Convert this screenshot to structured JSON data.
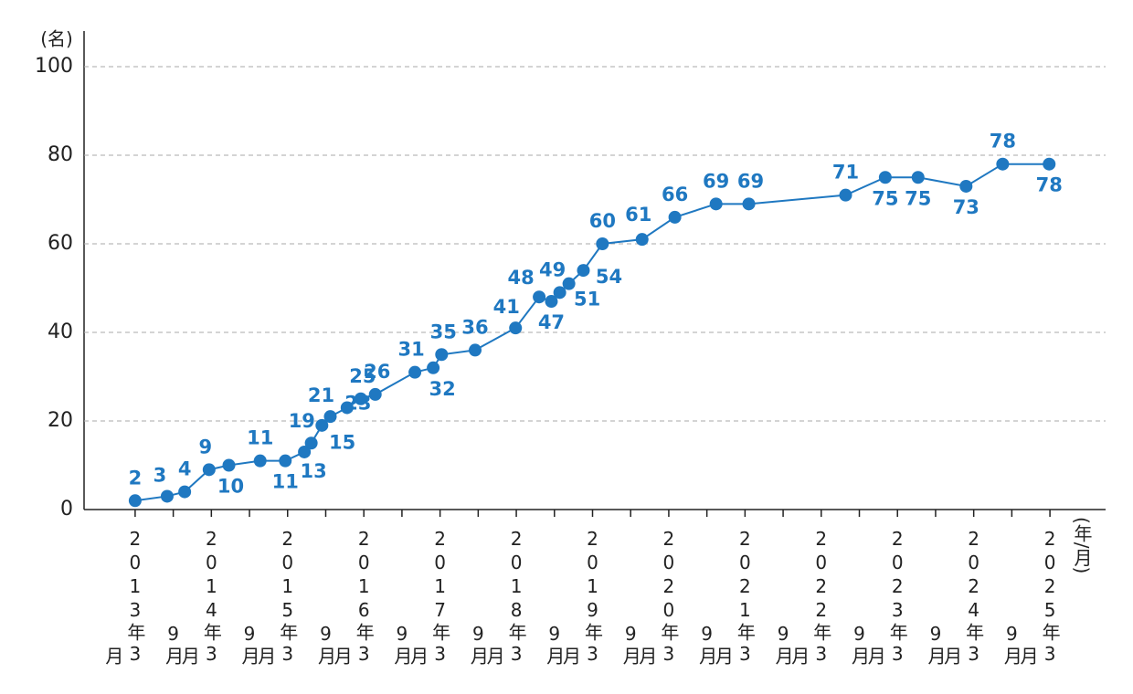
{
  "chart_data": {
    "type": "line",
    "y_unit": "(名)",
    "x_unit": "(年/月)",
    "color": "#1f78c1",
    "grid": true,
    "ylim": [
      0,
      100
    ],
    "yticks": [
      0,
      20,
      40,
      60,
      80,
      100
    ],
    "xlim": [
      2012.5,
      2025.9
    ],
    "xticks": [
      {
        "value": 2013.17,
        "label": "2013年3月"
      },
      {
        "value": 2013.67,
        "label": "9月"
      },
      {
        "value": 2014.17,
        "label": "2014年3月"
      },
      {
        "value": 2014.67,
        "label": "9月"
      },
      {
        "value": 2015.17,
        "label": "2015年3月"
      },
      {
        "value": 2015.67,
        "label": "9月"
      },
      {
        "value": 2016.17,
        "label": "2016年3月"
      },
      {
        "value": 2016.67,
        "label": "9月"
      },
      {
        "value": 2017.17,
        "label": "2017年3月"
      },
      {
        "value": 2017.67,
        "label": "9月"
      },
      {
        "value": 2018.17,
        "label": "2018年3月"
      },
      {
        "value": 2018.67,
        "label": "9月"
      },
      {
        "value": 2019.17,
        "label": "2019年3月"
      },
      {
        "value": 2019.67,
        "label": "9月"
      },
      {
        "value": 2020.17,
        "label": "2020年3月"
      },
      {
        "value": 2020.67,
        "label": "9月"
      },
      {
        "value": 2021.17,
        "label": "2021年3月"
      },
      {
        "value": 2021.67,
        "label": "9月"
      },
      {
        "value": 2022.17,
        "label": "2022年3月"
      },
      {
        "value": 2022.67,
        "label": "9月"
      },
      {
        "value": 2023.17,
        "label": "2023年3月"
      },
      {
        "value": 2023.67,
        "label": "9月"
      },
      {
        "value": 2024.17,
        "label": "2024年3月"
      },
      {
        "value": 2024.67,
        "label": "9月"
      },
      {
        "value": 2025.17,
        "label": "2025年3月"
      }
    ],
    "x": [
      2013.17,
      2013.59,
      2013.82,
      2014.14,
      2014.4,
      2014.81,
      2015.14,
      2015.39,
      2015.48,
      2015.62,
      2015.73,
      2015.95,
      2016.13,
      2016.32,
      2016.84,
      2017.08,
      2017.19,
      2017.63,
      2018.16,
      2018.47,
      2018.63,
      2018.74,
      2018.86,
      2019.05,
      2019.3,
      2019.82,
      2020.25,
      2020.79,
      2021.22,
      2022.49,
      2023.01,
      2023.44,
      2024.07,
      2024.55,
      2025.16
    ],
    "values": [
      2,
      3,
      4,
      9,
      10,
      11,
      11,
      13,
      15,
      19,
      21,
      23,
      25,
      26,
      31,
      32,
      35,
      36,
      41,
      48,
      47,
      49,
      51,
      54,
      60,
      61,
      66,
      69,
      69,
      71,
      75,
      75,
      73,
      78,
      78
    ]
  }
}
